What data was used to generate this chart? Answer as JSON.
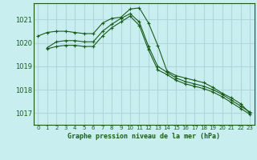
{
  "title": "Graphe pression niveau de la mer (hPa)",
  "background_color": "#c8eef0",
  "plot_bg_color": "#c8eef0",
  "grid_color": "#b0d8dc",
  "line_color": "#1a5c1a",
  "xlim": [
    -0.5,
    23.5
  ],
  "ylim": [
    1016.5,
    1021.7
  ],
  "yticks": [
    1017,
    1018,
    1019,
    1020,
    1021
  ],
  "xticks": [
    0,
    1,
    2,
    3,
    4,
    5,
    6,
    7,
    8,
    9,
    10,
    11,
    12,
    13,
    14,
    15,
    16,
    17,
    18,
    19,
    20,
    21,
    22,
    23
  ],
  "series": [
    {
      "x": [
        0,
        1,
        2,
        3,
        4,
        5,
        6,
        7,
        8,
        9,
        10,
        11,
        12,
        13,
        14,
        15,
        16,
        17,
        18,
        19,
        20,
        21,
        22,
        23
      ],
      "y": [
        1020.3,
        1020.45,
        1020.5,
        1020.5,
        1020.45,
        1020.4,
        1020.4,
        1020.85,
        1021.05,
        1021.1,
        1021.45,
        1021.5,
        1020.85,
        1019.9,
        1018.8,
        1018.6,
        1018.5,
        1018.4,
        1018.3,
        1018.1,
        1017.85,
        1017.65,
        1017.4,
        1017.0
      ]
    },
    {
      "x": [
        1,
        2,
        3,
        4,
        5,
        6,
        7,
        8,
        9,
        10,
        11,
        12,
        13,
        14,
        15,
        16,
        17,
        18,
        19,
        20,
        21,
        22,
        23
      ],
      "y": [
        1019.8,
        1020.05,
        1020.1,
        1020.1,
        1020.05,
        1020.05,
        1020.5,
        1020.8,
        1021.05,
        1021.25,
        1020.9,
        1019.85,
        1019.0,
        1018.75,
        1018.5,
        1018.35,
        1018.25,
        1018.15,
        1018.0,
        1017.8,
        1017.55,
        1017.3,
        1017.05
      ]
    },
    {
      "x": [
        1,
        2,
        3,
        4,
        5,
        6,
        7,
        8,
        9,
        10,
        11,
        12,
        13,
        14,
        15,
        16,
        17,
        18,
        19,
        20,
        21,
        22,
        23
      ],
      "y": [
        1019.75,
        1019.85,
        1019.9,
        1019.9,
        1019.85,
        1019.85,
        1020.3,
        1020.65,
        1020.9,
        1021.15,
        1020.75,
        1019.7,
        1018.85,
        1018.65,
        1018.4,
        1018.25,
        1018.15,
        1018.05,
        1017.9,
        1017.7,
        1017.45,
        1017.2,
        1016.95
      ]
    }
  ]
}
